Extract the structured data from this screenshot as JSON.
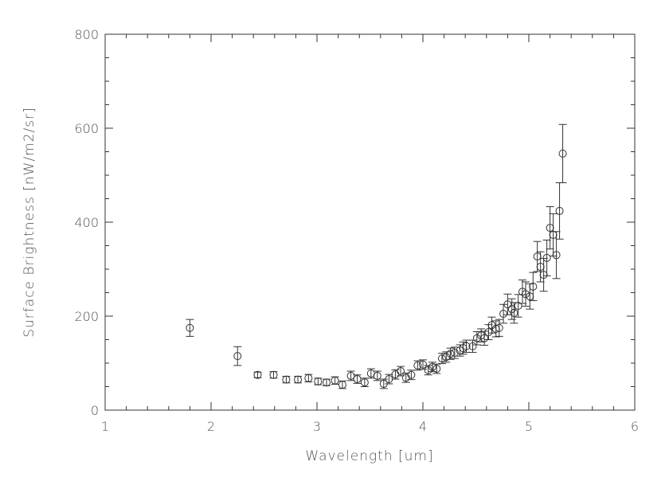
{
  "chart_data": {
    "type": "scatter",
    "title": "",
    "xlabel": "Wavelength [um]",
    "ylabel": "Surface Brightness [nW/m2/sr]",
    "xlim": [
      1,
      6
    ],
    "ylim": [
      0,
      800
    ],
    "xticks": [
      "1",
      "2",
      "3",
      "4",
      "5",
      "6"
    ],
    "yticks": [
      "0",
      "200",
      "400",
      "600",
      "800"
    ],
    "grid": false,
    "marker": "open-circle",
    "error_bars": true,
    "colors": {
      "axis": "#333333",
      "marker": "#333333",
      "text": "#555555"
    },
    "points": [
      {
        "x": 1.8,
        "y": 175,
        "err": 18
      },
      {
        "x": 2.25,
        "y": 115,
        "err": 20
      },
      {
        "x": 2.44,
        "y": 75,
        "err": 6
      },
      {
        "x": 2.59,
        "y": 75,
        "err": 7
      },
      {
        "x": 2.71,
        "y": 65,
        "err": 7
      },
      {
        "x": 2.82,
        "y": 65,
        "err": 7
      },
      {
        "x": 2.92,
        "y": 68,
        "err": 8
      },
      {
        "x": 3.01,
        "y": 61,
        "err": 7
      },
      {
        "x": 3.09,
        "y": 59,
        "err": 7
      },
      {
        "x": 3.17,
        "y": 63,
        "err": 8
      },
      {
        "x": 3.24,
        "y": 54,
        "err": 8
      },
      {
        "x": 3.32,
        "y": 73,
        "err": 10
      },
      {
        "x": 3.38,
        "y": 66,
        "err": 9
      },
      {
        "x": 3.45,
        "y": 59,
        "err": 9
      },
      {
        "x": 3.51,
        "y": 78,
        "err": 10
      },
      {
        "x": 3.57,
        "y": 73,
        "err": 10
      },
      {
        "x": 3.63,
        "y": 56,
        "err": 10
      },
      {
        "x": 3.68,
        "y": 66,
        "err": 10
      },
      {
        "x": 3.74,
        "y": 76,
        "err": 10
      },
      {
        "x": 3.79,
        "y": 83,
        "err": 10
      },
      {
        "x": 3.84,
        "y": 69,
        "err": 10
      },
      {
        "x": 3.89,
        "y": 75,
        "err": 10
      },
      {
        "x": 3.95,
        "y": 95,
        "err": 10
      },
      {
        "x": 4.0,
        "y": 97,
        "err": 10
      },
      {
        "x": 4.05,
        "y": 85,
        "err": 10
      },
      {
        "x": 4.09,
        "y": 92,
        "err": 10
      },
      {
        "x": 4.13,
        "y": 88,
        "err": 10
      },
      {
        "x": 4.18,
        "y": 110,
        "err": 11
      },
      {
        "x": 4.22,
        "y": 113,
        "err": 11
      },
      {
        "x": 4.26,
        "y": 120,
        "err": 12
      },
      {
        "x": 4.3,
        "y": 122,
        "err": 12
      },
      {
        "x": 4.35,
        "y": 127,
        "err": 12
      },
      {
        "x": 4.38,
        "y": 132,
        "err": 13
      },
      {
        "x": 4.41,
        "y": 136,
        "err": 13
      },
      {
        "x": 4.47,
        "y": 136,
        "err": 13
      },
      {
        "x": 4.51,
        "y": 153,
        "err": 14
      },
      {
        "x": 4.55,
        "y": 159,
        "err": 14
      },
      {
        "x": 4.58,
        "y": 153,
        "err": 15
      },
      {
        "x": 4.62,
        "y": 166,
        "err": 16
      },
      {
        "x": 4.65,
        "y": 181,
        "err": 17
      },
      {
        "x": 4.69,
        "y": 173,
        "err": 17
      },
      {
        "x": 4.72,
        "y": 175,
        "err": 18
      },
      {
        "x": 4.76,
        "y": 205,
        "err": 20
      },
      {
        "x": 4.8,
        "y": 225,
        "err": 22
      },
      {
        "x": 4.84,
        "y": 215,
        "err": 22
      },
      {
        "x": 4.86,
        "y": 207,
        "err": 22
      },
      {
        "x": 4.9,
        "y": 222,
        "err": 24
      },
      {
        "x": 4.94,
        "y": 252,
        "err": 25
      },
      {
        "x": 4.97,
        "y": 247,
        "err": 26
      },
      {
        "x": 5.01,
        "y": 242,
        "err": 27
      },
      {
        "x": 5.04,
        "y": 263,
        "err": 30
      },
      {
        "x": 5.08,
        "y": 327,
        "err": 32
      },
      {
        "x": 5.11,
        "y": 305,
        "err": 32
      },
      {
        "x": 5.14,
        "y": 288,
        "err": 35
      },
      {
        "x": 5.17,
        "y": 324,
        "err": 38
      },
      {
        "x": 5.2,
        "y": 388,
        "err": 45
      },
      {
        "x": 5.23,
        "y": 373,
        "err": 45
      },
      {
        "x": 5.26,
        "y": 330,
        "err": 50
      },
      {
        "x": 5.29,
        "y": 424,
        "err": 60
      },
      {
        "x": 5.32,
        "y": 546,
        "err": 62
      }
    ]
  }
}
